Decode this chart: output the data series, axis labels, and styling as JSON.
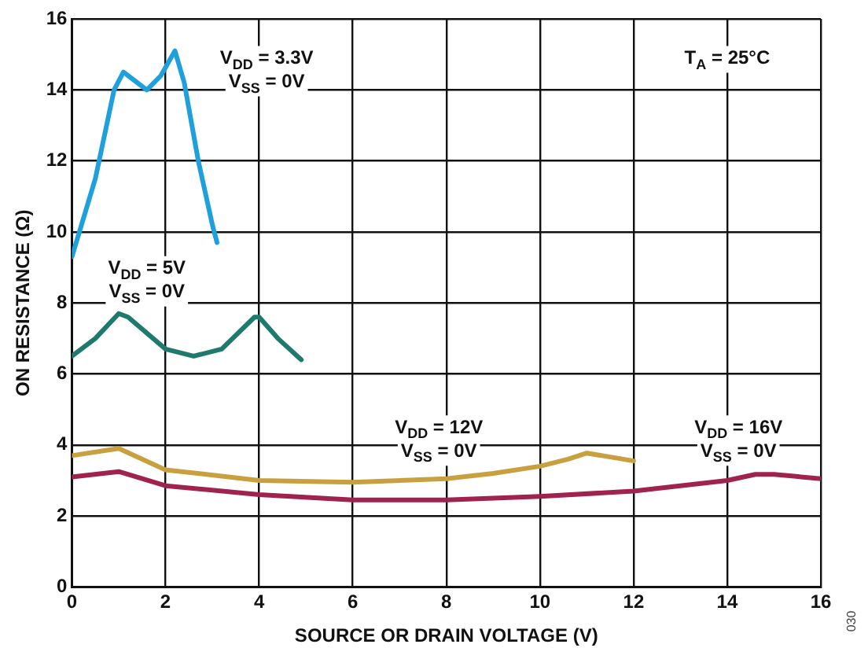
{
  "chart_data": {
    "type": "line",
    "xlabel": "SOURCE OR DRAIN VOLTAGE (V)",
    "ylabel": "ON RESISTANCE (Ω)",
    "xlim": [
      0,
      16
    ],
    "xticks": [
      0,
      2,
      4,
      6,
      8,
      10,
      12,
      14,
      16
    ],
    "ylim": [
      0,
      16
    ],
    "yticks": [
      0,
      2,
      4,
      6,
      8,
      10,
      12,
      14,
      16
    ],
    "grid": true,
    "marker": "none",
    "line_style": "solid",
    "series": [
      {
        "name": "V$_{DD}$ = 3.3V\nV$_{SS}$ = 0V",
        "color": "#1ea0dc",
        "x": [
          0,
          0.5,
          0.9,
          1.1,
          1.3,
          1.6,
          1.9,
          2.2,
          2.4,
          2.7,
          3.0,
          3.1
        ],
        "values": [
          9.3,
          11.5,
          14.0,
          14.5,
          14.3,
          14.0,
          14.4,
          15.1,
          14.2,
          12.0,
          10.2,
          9.7
        ]
      },
      {
        "name": "V$_{DD}$ = 5V\nV$_{SS}$ = 0V",
        "color": "#1f7a6e",
        "x": [
          0,
          0.5,
          1.0,
          1.2,
          2.0,
          2.6,
          3.2,
          3.9,
          4.0,
          4.4,
          4.9
        ],
        "values": [
          6.5,
          7.0,
          7.7,
          7.6,
          6.7,
          6.5,
          6.7,
          7.6,
          7.6,
          7.0,
          6.4
        ]
      },
      {
        "name": "V$_{DD}$ = 12V\nV$_{SS}$ = 0V",
        "color": "#c8a040",
        "x": [
          0,
          1,
          2,
          4,
          6,
          8,
          9,
          10,
          10.6,
          11,
          12
        ],
        "values": [
          3.7,
          3.9,
          3.3,
          3.0,
          2.95,
          3.05,
          3.2,
          3.4,
          3.6,
          3.77,
          3.55
        ]
      },
      {
        "name": "V$_{DD}$ = 16V\nV$_{SS}$ = 0V",
        "color": "#a0234b",
        "x": [
          0,
          1,
          2,
          4,
          6,
          8,
          10,
          12,
          13,
          14,
          14.6,
          15,
          16
        ],
        "values": [
          3.1,
          3.25,
          2.85,
          2.6,
          2.45,
          2.45,
          2.55,
          2.7,
          2.85,
          3.0,
          3.17,
          3.17,
          3.05
        ]
      }
    ],
    "annotations": [
      "T$_{A}$ = 25°C",
      "030"
    ]
  }
}
